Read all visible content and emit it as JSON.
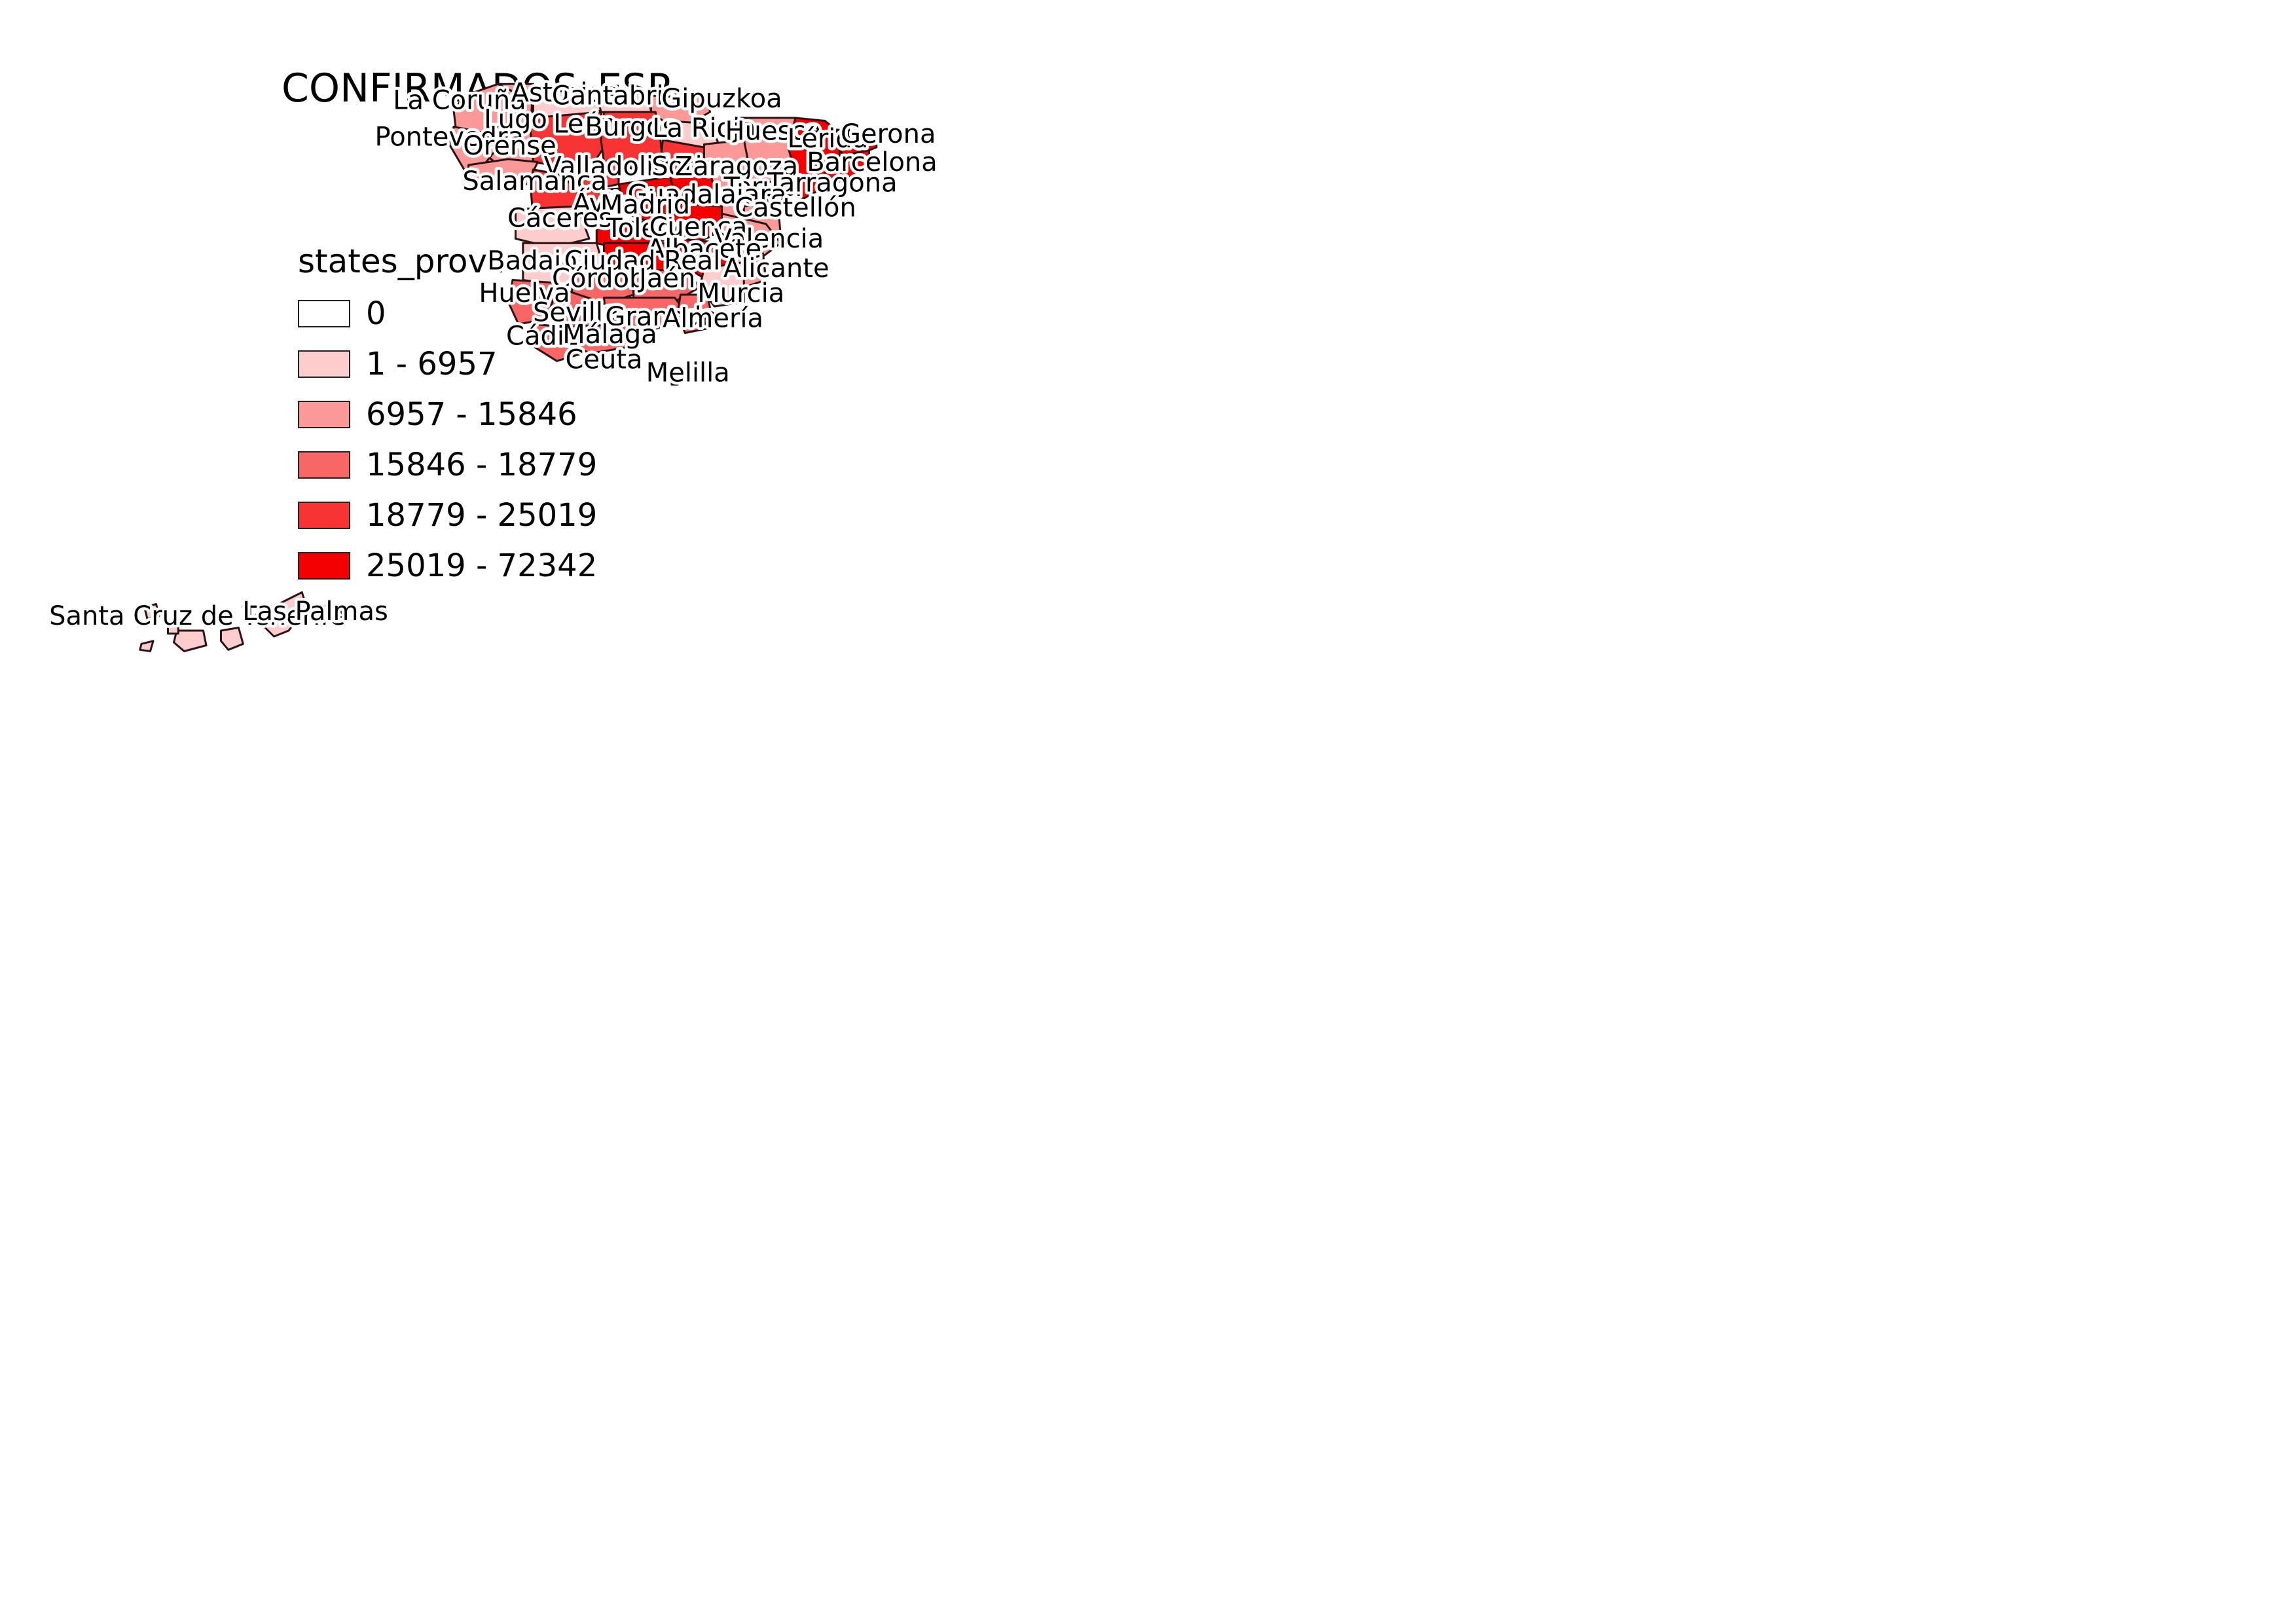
{
  "title": "CONFIRMADOS_ESP",
  "legend": {
    "title": "states_provinces",
    "classes": [
      {
        "label": "0",
        "color": "#ffffff"
      },
      {
        "label": "1 - 6957",
        "color": "#fdcccc"
      },
      {
        "label": "6957 - 15846",
        "color": "#fb9999"
      },
      {
        "label": "15846 - 18779",
        "color": "#f96666"
      },
      {
        "label": "18779 - 25019",
        "color": "#f73333"
      },
      {
        "label": "25019 - 72342",
        "color": "#f50000"
      }
    ]
  },
  "map": {
    "provinces": [
      {
        "name": "La Coruña",
        "class": 2
      },
      {
        "name": "Asturias",
        "class": 1
      },
      {
        "name": "Cantabria",
        "class": 1
      },
      {
        "name": "Gipuzkoa",
        "class": 2
      },
      {
        "name": "Lugo",
        "class": 2
      },
      {
        "name": "León",
        "class": 4
      },
      {
        "name": "Burgos",
        "class": 4
      },
      {
        "name": "La Rioja",
        "class": 1
      },
      {
        "name": "Huesca",
        "class": 2
      },
      {
        "name": "Lérida",
        "class": 5
      },
      {
        "name": "Gerona",
        "class": 5
      },
      {
        "name": "Pontevedra",
        "class": 2
      },
      {
        "name": "Orense",
        "class": 2
      },
      {
        "name": "Barcelona",
        "class": 5
      },
      {
        "name": "Valladolid",
        "class": 4
      },
      {
        "name": "Soria",
        "class": 4
      },
      {
        "name": "Zaragoza",
        "class": 2
      },
      {
        "name": "Salamanca",
        "class": 4
      },
      {
        "name": "Teruel",
        "class": 2
      },
      {
        "name": "Tarragona",
        "class": 5
      },
      {
        "name": "Guadalajara",
        "class": 5
      },
      {
        "name": "Ávila",
        "class": 4
      },
      {
        "name": "Madrid",
        "class": 5
      },
      {
        "name": "Castellón",
        "class": 2
      },
      {
        "name": "Cáceres",
        "class": 1
      },
      {
        "name": "Toledo",
        "class": 5
      },
      {
        "name": "Cuenca",
        "class": 5
      },
      {
        "name": "Valencia",
        "class": 2
      },
      {
        "name": "Albacete",
        "class": 5
      },
      {
        "name": "Badajoz",
        "class": 1
      },
      {
        "name": "Ciudad Real",
        "class": 5
      },
      {
        "name": "Alicante",
        "class": 2
      },
      {
        "name": "Córdoba",
        "class": 3
      },
      {
        "name": "Jaén",
        "class": 3
      },
      {
        "name": "Huelva",
        "class": 3
      },
      {
        "name": "Murcia",
        "class": 1
      },
      {
        "name": "Sevilla",
        "class": 3
      },
      {
        "name": "Granada",
        "class": 3
      },
      {
        "name": "Almería",
        "class": 3
      },
      {
        "name": "Cádiz",
        "class": 3
      },
      {
        "name": "Málaga",
        "class": 3
      },
      {
        "name": "Ceuta",
        "class": 0
      },
      {
        "name": "Melilla",
        "class": 0
      },
      {
        "name": "Santa Cruz de Tenerife",
        "class": 1
      },
      {
        "name": "Las Palmas",
        "class": 1
      }
    ]
  }
}
